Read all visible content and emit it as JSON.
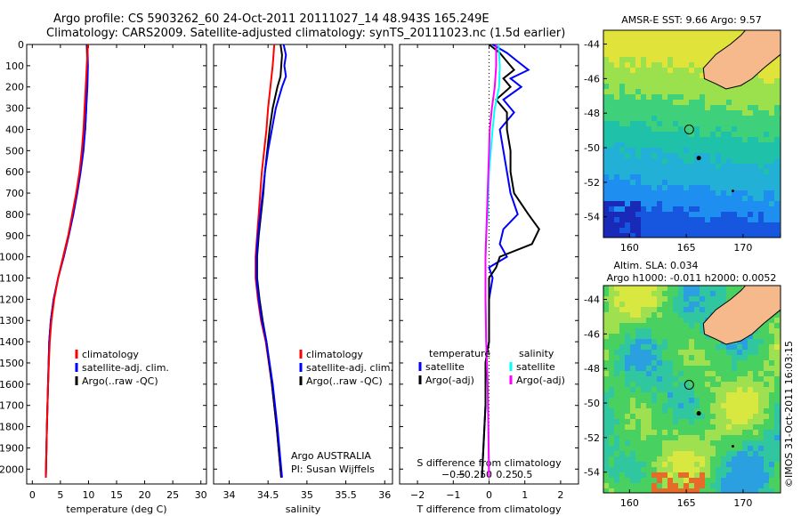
{
  "header": {
    "title_line1": "Argo profile: CS 5903262_60 24-Oct-2011 20111027_14 48.943S 165.249E",
    "title_line2": "Climatology: CARS2009. Satellite-adjusted climatology: synTS_20111023.nc (1.5d earlier)"
  },
  "colors": {
    "climatology": "#ff0000",
    "satellite": "#0000ff",
    "argo": "#000000",
    "satellite_salinity": "#00ffff",
    "argo_salinity": "#ff00ff",
    "land": "#f5b98b"
  },
  "chart_data": [
    {
      "id": "temperature",
      "type": "line",
      "xlabel": "temperature (deg C)",
      "ylabel": "",
      "xlim": [
        -1,
        31
      ],
      "xticks": [
        0,
        5,
        10,
        15,
        20,
        25,
        30
      ],
      "ylim": [
        2070,
        0
      ],
      "yticks": [
        0,
        100,
        200,
        300,
        400,
        500,
        600,
        700,
        800,
        900,
        1000,
        1100,
        1200,
        1300,
        1400,
        1500,
        1600,
        1700,
        1800,
        1900,
        2000
      ],
      "legend": [
        "climatology",
        "satellite-adj. clim.",
        "Argo(..raw -QC)"
      ],
      "legend_placement": "lower-center",
      "series": [
        {
          "name": "climatology",
          "color": "#ff0000",
          "depth": [
            0,
            100,
            200,
            300,
            400,
            500,
            600,
            700,
            800,
            900,
            1000,
            1100,
            1200,
            1300,
            1400,
            1600,
            1800,
            2040
          ],
          "values": [
            9.9,
            9.7,
            9.5,
            9.3,
            9.1,
            8.8,
            8.4,
            7.8,
            7.1,
            6.4,
            5.5,
            4.6,
            3.9,
            3.4,
            3.1,
            2.8,
            2.6,
            2.4
          ]
        },
        {
          "name": "satellite-adj. clim.",
          "color": "#0000ff",
          "depth": [
            0,
            100,
            200,
            300,
            400,
            500,
            600,
            700,
            800,
            900,
            1000,
            1100,
            1200,
            1300,
            1400,
            1600,
            1800,
            2040
          ],
          "values": [
            9.8,
            9.9,
            9.8,
            9.6,
            9.4,
            9.1,
            8.6,
            8.0,
            7.3,
            6.5,
            5.6,
            4.6,
            3.8,
            3.3,
            3.0,
            2.8,
            2.6,
            2.4
          ]
        },
        {
          "name": "Argo(..raw -QC)",
          "color": "#000000",
          "depth": [
            0,
            100,
            200,
            300,
            400,
            500,
            600,
            700,
            800,
            900,
            1000,
            1100,
            1200,
            1300,
            1400,
            1600,
            1800,
            2040
          ],
          "values": [
            9.7,
            9.8,
            9.7,
            9.6,
            9.4,
            9.0,
            8.5,
            7.9,
            7.2,
            6.4,
            5.5,
            4.6,
            3.8,
            3.3,
            3.0,
            2.8,
            2.6,
            2.4
          ]
        }
      ]
    },
    {
      "id": "salinity",
      "type": "line",
      "xlabel": "salinity",
      "xlim": [
        33.8,
        36.1
      ],
      "xticks": [
        34,
        34.5,
        35,
        35.5,
        36
      ],
      "xticklabels": [
        "34",
        "34.5",
        "35",
        "35.5",
        "36"
      ],
      "ylim": [
        2070,
        0
      ],
      "legend": [
        "climatology",
        "satellite-adj. clim.",
        "Argo(..raw -QC)"
      ],
      "legend_placement": "lower-center",
      "annotation": [
        "Argo AUSTRALIA",
        "PI: Susan Wijffels"
      ],
      "series": [
        {
          "name": "climatology",
          "color": "#ff0000",
          "depth": [
            0,
            100,
            200,
            300,
            400,
            500,
            600,
            700,
            800,
            900,
            1000,
            1100,
            1200,
            1300,
            1400,
            1600,
            1800,
            2040
          ],
          "values": [
            34.58,
            34.56,
            34.53,
            34.5,
            34.48,
            34.45,
            34.42,
            34.4,
            34.38,
            34.36,
            34.34,
            34.34,
            34.37,
            34.41,
            34.47,
            34.55,
            34.61,
            34.67
          ]
        },
        {
          "name": "satellite-adj. clim.",
          "color": "#0000ff",
          "depth": [
            0,
            50,
            100,
            150,
            200,
            300,
            400,
            500,
            600,
            700,
            800,
            900,
            1000,
            1100,
            1200,
            1300,
            1400,
            1600,
            1800,
            2040
          ],
          "values": [
            34.7,
            34.73,
            34.71,
            34.73,
            34.68,
            34.6,
            34.55,
            34.5,
            34.46,
            34.43,
            34.4,
            34.37,
            34.35,
            34.35,
            34.38,
            34.42,
            34.48,
            34.56,
            34.62,
            34.68
          ]
        },
        {
          "name": "Argo(..raw -QC)",
          "color": "#000000",
          "depth": [
            0,
            50,
            100,
            150,
            200,
            300,
            400,
            500,
            600,
            700,
            800,
            900,
            1000,
            1100,
            1200,
            1300,
            1400,
            1600,
            1800,
            2040
          ],
          "values": [
            34.66,
            34.68,
            34.67,
            34.66,
            34.62,
            34.56,
            34.52,
            34.49,
            34.46,
            34.44,
            34.41,
            34.38,
            34.36,
            34.36,
            34.39,
            34.43,
            34.48,
            34.55,
            34.61,
            34.67
          ]
        }
      ]
    },
    {
      "id": "difference",
      "type": "line",
      "xlabel": "T difference from climatology",
      "xlabel_top": "S difference from climatology",
      "xlim": [
        -2.5,
        2.5
      ],
      "xticks": [
        -2,
        -1,
        0,
        1,
        2
      ],
      "xticklabels": [
        "−2",
        "−1",
        "0",
        "1",
        "2"
      ],
      "s_xticks": [
        -0.5,
        -0.25,
        0,
        0.25,
        0.5
      ],
      "s_xticklabels": [
        "−0.5",
        "−0.25",
        "0",
        "0.25",
        "0.5"
      ],
      "ylim": [
        2070,
        0
      ],
      "legend_left_title": "temperature",
      "legend_right_title": "salinity",
      "legend_left": [
        "satellite",
        "Argo(-adj)"
      ],
      "legend_right": [
        "satellite",
        "Argo(-adj)"
      ],
      "series": [
        {
          "name": "satellite",
          "group": "temperature",
          "color": "#0000ff",
          "depth": [
            0,
            40,
            80,
            120,
            160,
            200,
            260,
            320,
            400,
            500,
            600,
            700,
            800,
            870,
            940,
            1000,
            1050,
            1100,
            1200,
            1300,
            1400,
            1500,
            1700,
            2040
          ],
          "values": [
            0.1,
            0.5,
            0.8,
            1.1,
            0.6,
            0.9,
            0.4,
            0.7,
            0.3,
            0.4,
            0.5,
            0.6,
            0.8,
            0.4,
            0.3,
            0.5,
            0.0,
            0.1,
            0.0,
            0.0,
            0.0,
            -0.1,
            -0.1,
            -0.2
          ]
        },
        {
          "name": "Argo(-adj)",
          "group": "temperature",
          "color": "#000000",
          "depth": [
            0,
            40,
            80,
            120,
            160,
            200,
            260,
            320,
            400,
            500,
            600,
            700,
            800,
            870,
            940,
            1000,
            1050,
            1100,
            1200,
            1300,
            1400,
            1500,
            1700,
            2040
          ],
          "values": [
            0.0,
            0.3,
            0.5,
            0.7,
            0.4,
            0.6,
            0.2,
            0.5,
            0.5,
            0.6,
            0.6,
            0.7,
            1.1,
            1.4,
            1.2,
            0.3,
            0.2,
            0.0,
            0.0,
            0.0,
            0.0,
            -0.1,
            -0.1,
            -0.2
          ]
        },
        {
          "name": "satellite",
          "group": "salinity",
          "color": "#00ffff",
          "depth": [
            0,
            100,
            200,
            300,
            400,
            600,
            800,
            900,
            1000,
            1100,
            1200,
            1400,
            1600,
            1800,
            2040
          ],
          "values": [
            0.13,
            0.15,
            0.14,
            0.08,
            0.05,
            0.0,
            -0.02,
            -0.04,
            -0.05,
            -0.05,
            -0.05,
            -0.04,
            -0.02,
            -0.01,
            0.0
          ]
        },
        {
          "name": "Argo(-adj)",
          "group": "salinity",
          "color": "#ff00ff",
          "depth": [
            0,
            100,
            200,
            300,
            400,
            600,
            800,
            900,
            1000,
            1100,
            1200,
            1400,
            1600,
            1800,
            2040
          ],
          "values": [
            0.1,
            0.1,
            0.08,
            0.04,
            0.01,
            -0.01,
            -0.03,
            -0.04,
            -0.05,
            -0.05,
            -0.05,
            -0.04,
            -0.02,
            -0.01,
            0.0
          ]
        }
      ]
    },
    {
      "id": "sst_map",
      "type": "heatmap",
      "title": "AMSR-E SST: 9.66 Argo: 9.57",
      "xticks": [
        160,
        165,
        170
      ],
      "yticks": [
        -44,
        -46,
        -48,
        -50,
        -52,
        -54
      ],
      "xlim": [
        157.7,
        173.3
      ],
      "ylim": [
        -55.2,
        -43.2
      ],
      "marker": {
        "lon": 165.249,
        "lat": -48.943
      }
    },
    {
      "id": "sla_map",
      "type": "heatmap",
      "title": "Altim. SLA: 0.034",
      "subtitle": "Argo h1000: -0.011 h2000: 0.0052",
      "xticks": [
        160,
        165,
        170
      ],
      "yticks": [
        -44,
        -46,
        -48,
        -50,
        -52,
        -54
      ],
      "xlim": [
        157.7,
        173.3
      ],
      "ylim": [
        -55.2,
        -43.2
      ],
      "marker": {
        "lon": 165.249,
        "lat": -48.943
      }
    }
  ],
  "side_label": "©IMOS 31-Oct-2011 16:03:15"
}
